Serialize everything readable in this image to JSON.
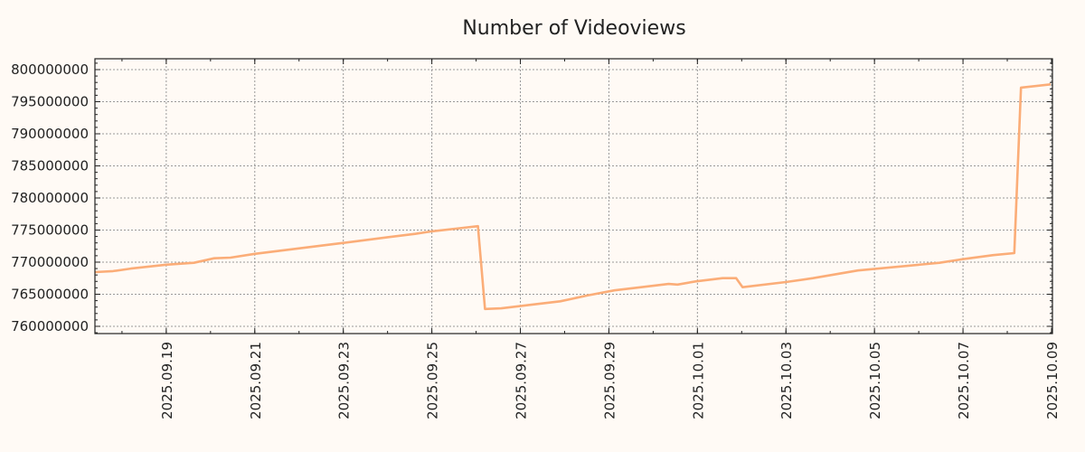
{
  "chart_data": {
    "type": "line",
    "title": "Number of Videoviews",
    "xlabel": "",
    "ylabel": "",
    "grid": true,
    "line_color": "#fbad78",
    "background_color": "#fffaf5",
    "xlim": [
      "2025-09-17T09:20:00Z",
      "2025-10-09T00:30:00Z"
    ],
    "ylim": [
      758870000,
      801690000
    ],
    "x_ticks": [
      {
        "label": "2025.09.19",
        "value": "2025-09-19T00:00:00Z"
      },
      {
        "label": "2025.09.21",
        "value": "2025-09-21T00:00:00Z"
      },
      {
        "label": "2025.09.23",
        "value": "2025-09-23T00:00:00Z"
      },
      {
        "label": "2025.09.25",
        "value": "2025-09-25T00:00:00Z"
      },
      {
        "label": "2025.09.27",
        "value": "2025-09-27T00:00:00Z"
      },
      {
        "label": "2025.09.29",
        "value": "2025-09-29T00:00:00Z"
      },
      {
        "label": "2025.10.01",
        "value": "2025-10-01T00:00:00Z"
      },
      {
        "label": "2025.10.03",
        "value": "2025-10-03T00:00:00Z"
      },
      {
        "label": "2025.10.05",
        "value": "2025-10-05T00:00:00Z"
      },
      {
        "label": "2025.10.07",
        "value": "2025-10-07T00:00:00Z"
      },
      {
        "label": "2025.10.09",
        "value": "2025-10-09T00:00:00Z"
      }
    ],
    "y_ticks": [
      {
        "label": "760000000",
        "value": 760000000
      },
      {
        "label": "765000000",
        "value": 765000000
      },
      {
        "label": "770000000",
        "value": 770000000
      },
      {
        "label": "775000000",
        "value": 775000000
      },
      {
        "label": "780000000",
        "value": 780000000
      },
      {
        "label": "785000000",
        "value": 785000000
      },
      {
        "label": "790000000",
        "value": 790000000
      },
      {
        "label": "795000000",
        "value": 795000000
      },
      {
        "label": "800000000",
        "value": 800000000
      }
    ],
    "series": [
      {
        "name": "Videoviews",
        "x": [
          "2025-09-17T09:20:00Z",
          "2025-09-17T19:12:00Z",
          "2025-09-18T04:48:00Z",
          "2025-09-19T00:00:00Z",
          "2025-09-19T15:00:00Z",
          "2025-09-20T02:00:00Z",
          "2025-09-20T10:48:00Z",
          "2025-09-21T00:00:00Z",
          "2025-09-23T00:00:00Z",
          "2025-09-24T00:30:00Z",
          "2025-09-24T15:00:00Z",
          "2025-09-25T00:00:00Z",
          "2025-09-26T01:00:00Z",
          "2025-09-26T04:48:00Z",
          "2025-09-26T13:40:00Z",
          "2025-09-27T07:00:00Z",
          "2025-09-27T21:36:00Z",
          "2025-09-28T12:14:00Z",
          "2025-09-29T03:00:00Z",
          "2025-09-29T17:30:00Z",
          "2025-09-30T08:24:00Z",
          "2025-09-30T13:12:00Z",
          "2025-09-30T23:00:00Z",
          "2025-10-01T13:40:00Z",
          "2025-10-01T21:00:00Z",
          "2025-10-02T00:30:00Z",
          "2025-10-03T00:00:00Z",
          "2025-10-03T14:40:00Z",
          "2025-10-04T15:00:00Z",
          "2025-10-06T11:17:00Z",
          "2025-10-06T22:30:00Z",
          "2025-10-07T16:30:00Z",
          "2025-10-08T03:50:00Z",
          "2025-10-08T07:26:00Z",
          "2025-10-08T23:30:00Z"
        ],
        "values": [
          768450000,
          768600000,
          769000000,
          769600000,
          769900000,
          770600000,
          770700000,
          771300000,
          773000000,
          773900000,
          774400000,
          774800000,
          775600000,
          762700000,
          762800000,
          763400000,
          763900000,
          764800000,
          765600000,
          766100000,
          766600000,
          766500000,
          767000000,
          767500000,
          767500000,
          766100000,
          766900000,
          767500000,
          768700000,
          769900000,
          770400000,
          771100000,
          771400000,
          797200000,
          797700000
        ]
      }
    ]
  }
}
